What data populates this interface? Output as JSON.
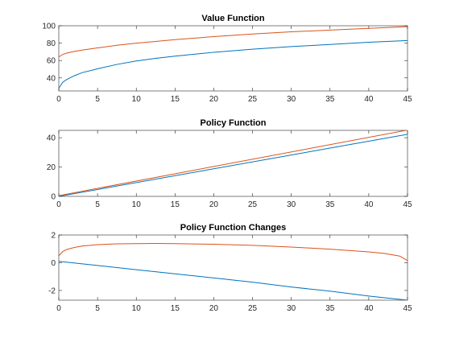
{
  "chart_data": [
    {
      "type": "line",
      "title": "Value Function",
      "xlim": [
        0,
        45
      ],
      "ylim": [
        25,
        100
      ],
      "xticks": [
        0,
        5,
        10,
        15,
        20,
        25,
        30,
        35,
        40,
        45
      ],
      "yticks": [
        40,
        60,
        80,
        100
      ],
      "grid": false,
      "series": [
        {
          "color": "#0072BD",
          "x": [
            0,
            0.5,
            1,
            2,
            3,
            5,
            7.5,
            10,
            12.5,
            15,
            20,
            25,
            30,
            35,
            40,
            45
          ],
          "y": [
            28,
            35,
            38,
            42.5,
            46,
            50.5,
            55.5,
            59.5,
            62.5,
            65,
            69.5,
            73,
            76,
            78.5,
            81,
            83
          ]
        },
        {
          "color": "#D95319",
          "x": [
            0,
            0.5,
            1,
            2,
            3,
            5,
            7.5,
            10,
            12.5,
            15,
            20,
            25,
            30,
            35,
            40,
            45
          ],
          "y": [
            64,
            67,
            68.5,
            70.5,
            72,
            74.5,
            77.5,
            80,
            82,
            84,
            87.5,
            90.5,
            93,
            95,
            97,
            99
          ]
        }
      ]
    },
    {
      "type": "line",
      "title": "Policy Function",
      "xlim": [
        0,
        45
      ],
      "ylim": [
        0,
        45
      ],
      "xticks": [
        0,
        5,
        10,
        15,
        20,
        25,
        30,
        35,
        40,
        45
      ],
      "yticks": [
        0,
        20,
        40
      ],
      "grid": false,
      "series": [
        {
          "color": "#0072BD",
          "x": [
            0,
            45
          ],
          "y": [
            0,
            42.3
          ]
        },
        {
          "color": "#D95319",
          "x": [
            0,
            45
          ],
          "y": [
            0.5,
            45.2
          ]
        }
      ]
    },
    {
      "type": "line",
      "title": "Policy Function Changes",
      "xlim": [
        0,
        45
      ],
      "ylim": [
        -2.7,
        2
      ],
      "xticks": [
        0,
        5,
        10,
        15,
        20,
        25,
        30,
        35,
        40,
        45
      ],
      "yticks": [
        -2,
        0,
        2
      ],
      "grid": false,
      "series": [
        {
          "color": "#0072BD",
          "x": [
            0,
            5,
            10,
            15,
            20,
            25,
            30,
            35,
            40,
            45
          ],
          "y": [
            0.1,
            -0.2,
            -0.5,
            -0.8,
            -1.1,
            -1.4,
            -1.75,
            -2.05,
            -2.4,
            -2.7
          ]
        },
        {
          "color": "#D95319",
          "x": [
            0,
            0.5,
            1,
            2,
            3,
            5,
            7.5,
            10,
            12.5,
            15,
            20,
            25,
            30,
            35,
            40,
            42,
            44,
            45
          ],
          "y": [
            0.5,
            0.8,
            0.95,
            1.1,
            1.2,
            1.3,
            1.36,
            1.38,
            1.39,
            1.38,
            1.33,
            1.25,
            1.13,
            0.98,
            0.78,
            0.67,
            0.48,
            0.15
          ]
        }
      ]
    }
  ]
}
